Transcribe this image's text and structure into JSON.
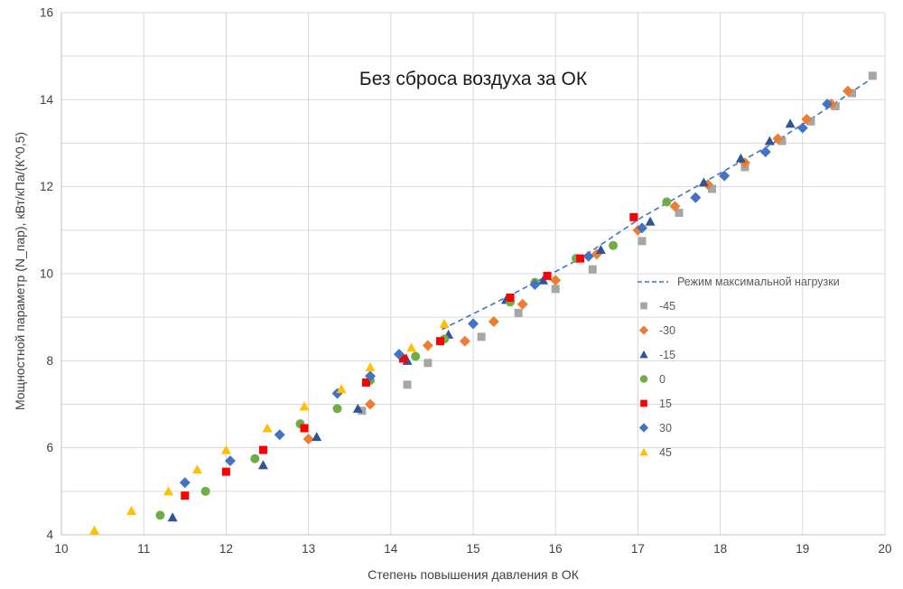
{
  "chart_data": {
    "type": "scatter",
    "title": "Без сброса воздуха за ОК",
    "xlabel": "Степень повышения давления в ОК",
    "ylabel": "Мощностной параметр (N_пар), кВт/кПа/(К^0,5)",
    "xlim": [
      10,
      20
    ],
    "ylim": [
      4,
      16
    ],
    "x_tick_step": 1,
    "y_tick_step": 2,
    "grid": {
      "x_step": 1,
      "y_step": 1,
      "color": "#d9d9d9",
      "axis_color": "#bfbfbf"
    },
    "text_color": "#404040",
    "legend_text_color": "#595959",
    "legend_position": "inside-right",
    "line_series": {
      "name": "Режим максимальной нагрузки",
      "color": "#4472c4",
      "style": "dashed",
      "points": [
        [
          14.62,
          8.72
        ],
        [
          15.5,
          9.55
        ],
        [
          16.3,
          10.35
        ],
        [
          17.05,
          11.3
        ],
        [
          17.8,
          12.1
        ],
        [
          18.6,
          12.95
        ],
        [
          19.3,
          13.8
        ],
        [
          19.85,
          14.5
        ]
      ]
    },
    "series": [
      {
        "name": "-45",
        "marker": "square",
        "color": "#a6a6a6",
        "points": [
          [
            13.65,
            6.85
          ],
          [
            14.2,
            7.45
          ],
          [
            14.45,
            7.95
          ],
          [
            15.1,
            8.55
          ],
          [
            15.55,
            9.1
          ],
          [
            16.0,
            9.65
          ],
          [
            16.45,
            10.1
          ],
          [
            17.05,
            10.75
          ],
          [
            17.5,
            11.4
          ],
          [
            17.9,
            11.95
          ],
          [
            18.3,
            12.45
          ],
          [
            18.75,
            13.05
          ],
          [
            19.1,
            13.5
          ],
          [
            19.4,
            13.85
          ],
          [
            19.6,
            14.15
          ],
          [
            19.85,
            14.55
          ]
        ]
      },
      {
        "name": "-30",
        "marker": "diamond",
        "color": "#ed7d31",
        "points": [
          [
            13.0,
            6.2
          ],
          [
            13.75,
            7.0
          ],
          [
            14.45,
            8.35
          ],
          [
            14.9,
            8.45
          ],
          [
            15.25,
            8.9
          ],
          [
            15.6,
            9.3
          ],
          [
            16.0,
            9.85
          ],
          [
            16.5,
            10.45
          ],
          [
            17.0,
            11.0
          ],
          [
            17.45,
            11.55
          ],
          [
            17.85,
            12.05
          ],
          [
            18.3,
            12.55
          ],
          [
            18.7,
            13.1
          ],
          [
            19.05,
            13.55
          ],
          [
            19.35,
            13.9
          ],
          [
            19.55,
            14.2
          ]
        ]
      },
      {
        "name": "-15",
        "marker": "triangle",
        "color": "#2f5597",
        "points": [
          [
            11.35,
            4.4
          ],
          [
            12.45,
            5.6
          ],
          [
            13.1,
            6.25
          ],
          [
            13.6,
            6.9
          ],
          [
            14.2,
            8.0
          ],
          [
            14.7,
            8.6
          ],
          [
            15.4,
            9.4
          ],
          [
            15.85,
            9.85
          ],
          [
            16.55,
            10.55
          ],
          [
            17.15,
            11.2
          ],
          [
            17.8,
            12.1
          ],
          [
            18.25,
            12.65
          ],
          [
            18.6,
            13.05
          ],
          [
            18.85,
            13.45
          ]
        ]
      },
      {
        "name": "0",
        "marker": "circle",
        "color": "#70ad47",
        "points": [
          [
            11.2,
            4.45
          ],
          [
            11.75,
            5.0
          ],
          [
            12.35,
            5.75
          ],
          [
            12.9,
            6.55
          ],
          [
            13.35,
            6.9
          ],
          [
            13.75,
            7.55
          ],
          [
            14.3,
            8.1
          ],
          [
            14.65,
            8.5
          ],
          [
            15.45,
            9.35
          ],
          [
            15.75,
            9.8
          ],
          [
            16.25,
            10.35
          ],
          [
            16.7,
            10.65
          ],
          [
            17.35,
            11.65
          ]
        ]
      },
      {
        "name": "15",
        "marker": "square",
        "color": "#ff0000",
        "points": [
          [
            11.5,
            4.9
          ],
          [
            12.0,
            5.45
          ],
          [
            12.45,
            5.95
          ],
          [
            12.95,
            6.45
          ],
          [
            13.7,
            7.5
          ],
          [
            14.15,
            8.05
          ],
          [
            14.6,
            8.45
          ],
          [
            15.45,
            9.45
          ],
          [
            15.9,
            9.95
          ],
          [
            16.3,
            10.35
          ],
          [
            16.95,
            11.3
          ]
        ]
      },
      {
        "name": "30",
        "marker": "diamond",
        "color": "#4472c4",
        "points": [
          [
            11.5,
            5.2
          ],
          [
            12.05,
            5.7
          ],
          [
            12.65,
            6.3
          ],
          [
            13.35,
            7.25
          ],
          [
            13.75,
            7.65
          ],
          [
            14.1,
            8.15
          ],
          [
            15.0,
            8.85
          ],
          [
            15.75,
            9.75
          ],
          [
            16.4,
            10.4
          ],
          [
            17.05,
            11.05
          ],
          [
            17.7,
            11.75
          ],
          [
            18.05,
            12.25
          ],
          [
            18.55,
            12.8
          ],
          [
            19.0,
            13.35
          ],
          [
            19.3,
            13.9
          ]
        ]
      },
      {
        "name": "45",
        "marker": "triangle",
        "color": "#ffc000",
        "points": [
          [
            10.4,
            4.1
          ],
          [
            10.85,
            4.55
          ],
          [
            11.3,
            5.0
          ],
          [
            11.65,
            5.5
          ],
          [
            12.0,
            5.95
          ],
          [
            12.5,
            6.45
          ],
          [
            12.95,
            6.95
          ],
          [
            13.4,
            7.35
          ],
          [
            13.75,
            7.85
          ],
          [
            14.25,
            8.3
          ],
          [
            14.65,
            8.85
          ]
        ]
      }
    ]
  }
}
